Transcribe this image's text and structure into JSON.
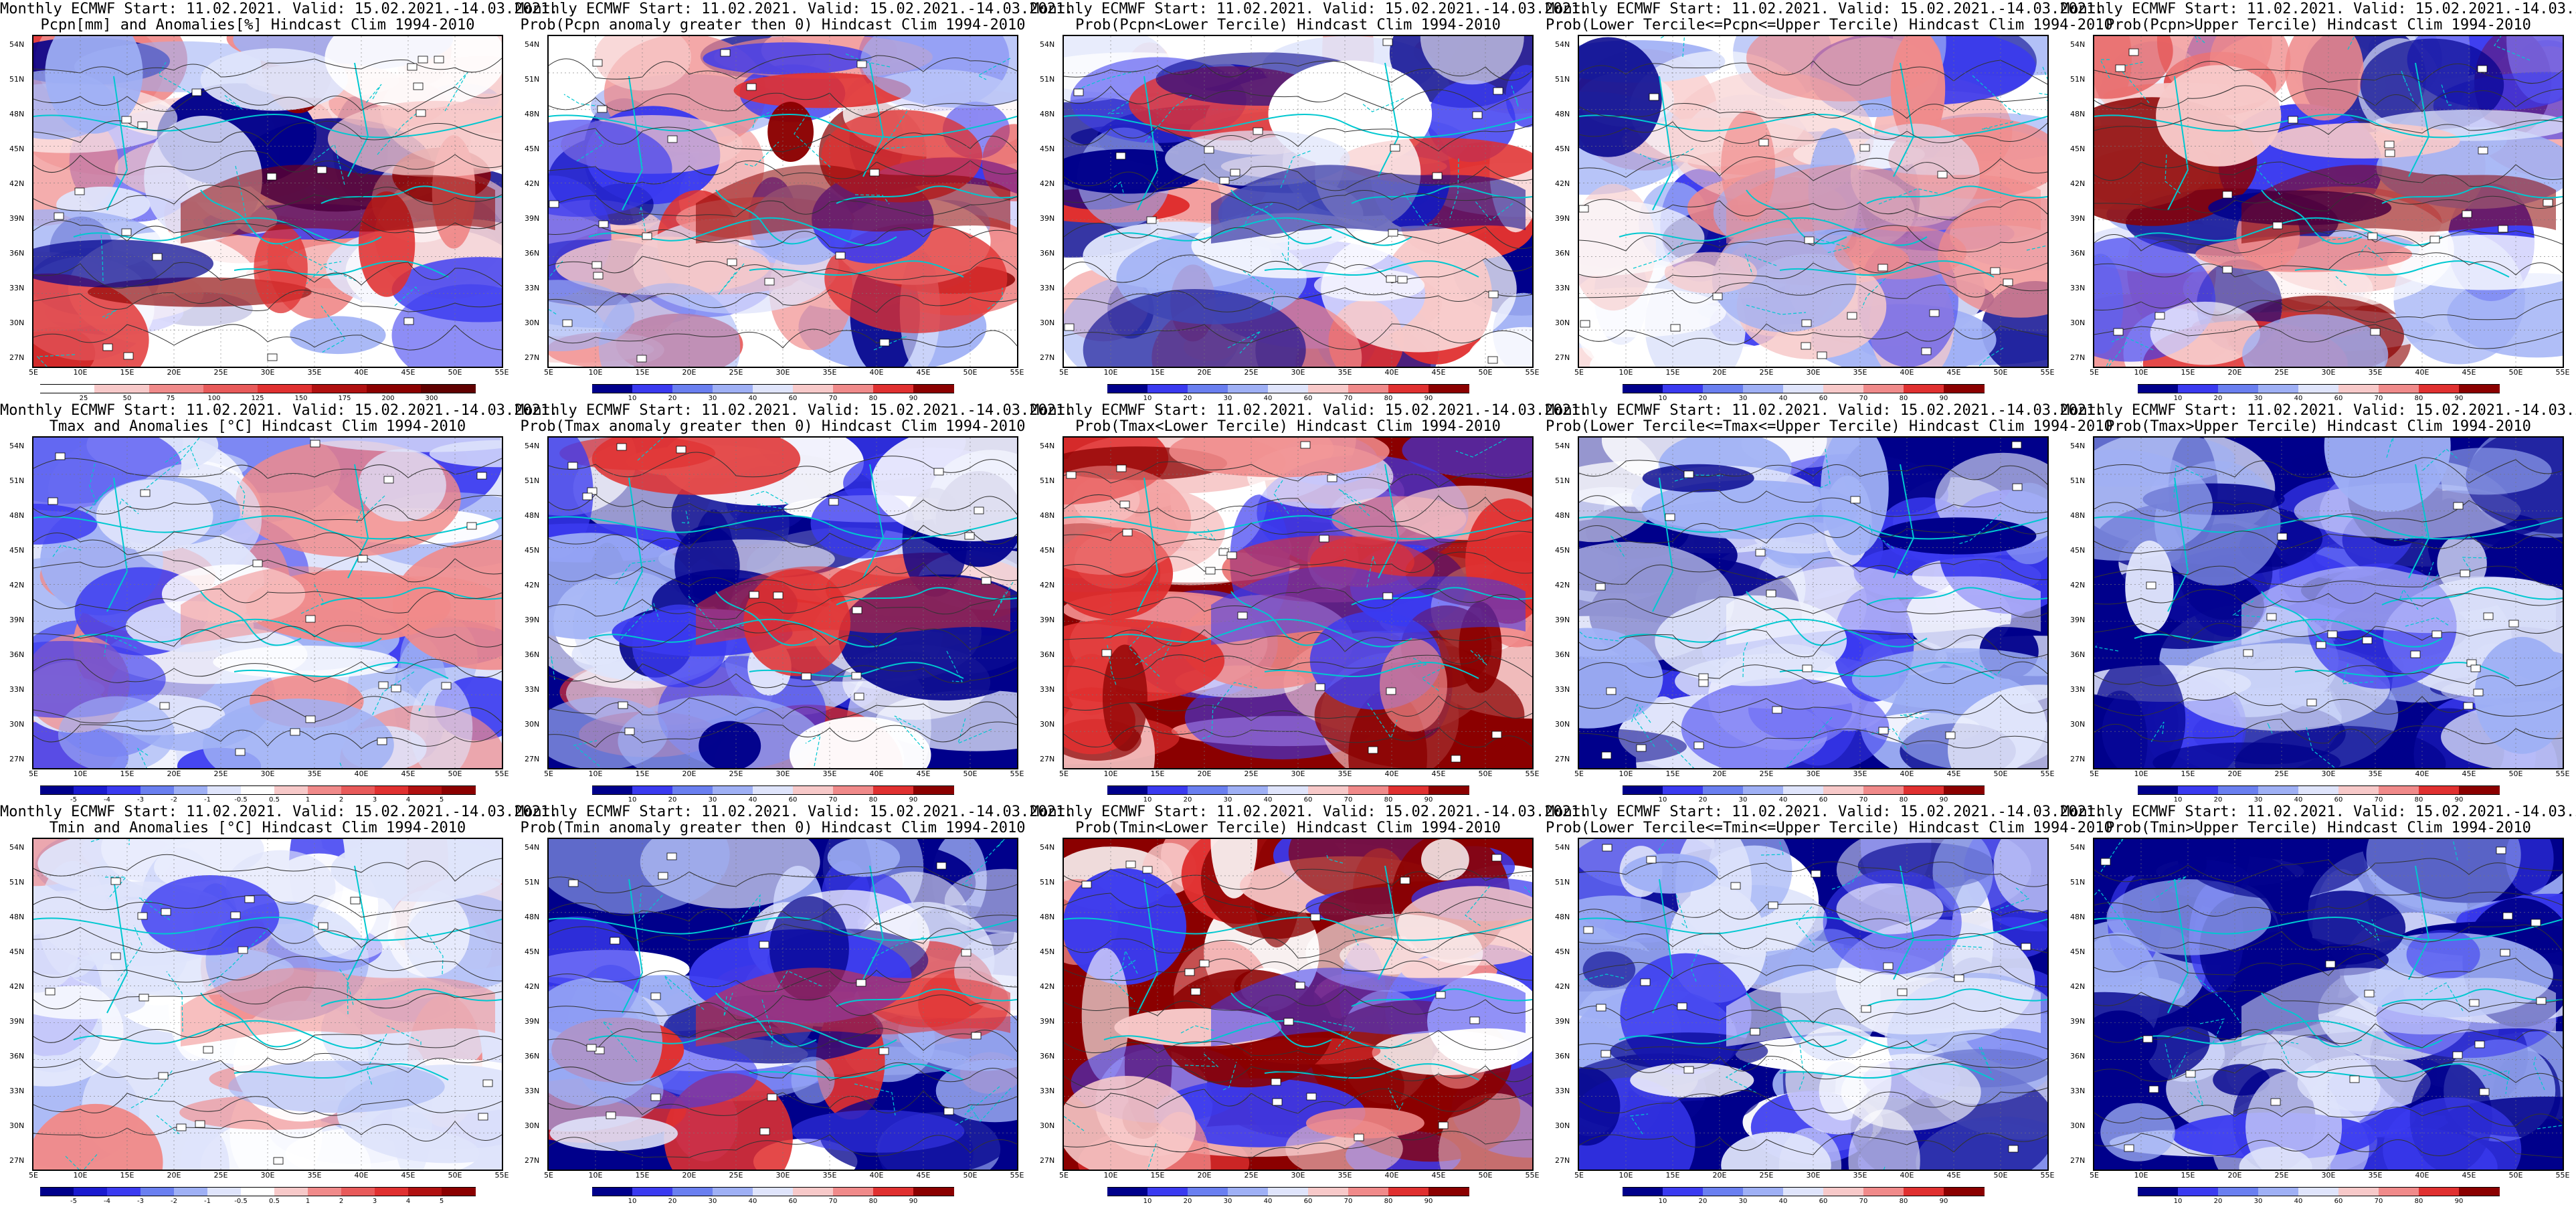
{
  "header": "Monthly ECMWF Start: 11.02.2021. Valid: 15.02.2021.-14.03.2021.",
  "lat_labels": [
    "54N",
    "51N",
    "48N",
    "45N",
    "42N",
    "39N",
    "36N",
    "33N",
    "30N",
    "27N"
  ],
  "lon_labels": [
    "5E",
    "10E",
    "15E",
    "20E",
    "25E",
    "30E",
    "35E",
    "40E",
    "45E",
    "50E",
    "55E"
  ],
  "colors": {
    "deep_blue": "#00008b",
    "mid_blue": "#3a3af0",
    "light_blue": "#9fb0f5",
    "pale_blue": "#dfe4fb",
    "white": "#ffffff",
    "pale_red": "#f7c9c9",
    "light_red": "#f08a8a",
    "mid_red": "#e03030",
    "deep_red": "#8b0000",
    "border_cyan": "#00c8d0",
    "contour": "#333333"
  },
  "anomaly_ticks_temp": [
    "-5",
    "-4",
    "-3",
    "-2",
    "-1",
    "-0.5",
    "0.5",
    "1",
    "2",
    "3",
    "4",
    "5"
  ],
  "anomaly_ticks_prec": [
    "25",
    "50",
    "75",
    "100",
    "125",
    "150",
    "175",
    "200",
    "300"
  ],
  "prob_ticks": [
    "10",
    "20",
    "30",
    "40",
    "60",
    "70",
    "80",
    "90"
  ],
  "panels": [
    {
      "id": "p-prec-anom",
      "title2": "Pcpn[mm] and Anomalies[%] Hindcast Clim 1994-2010",
      "scheme": "prec",
      "bar": "prec"
    },
    {
      "id": "p-prec-gt0",
      "title2": "Prob(Pcpn anomaly greater then 0) Hindcast Clim 1994-2010",
      "scheme": "prec",
      "bar": "prob"
    },
    {
      "id": "p-prec-low",
      "title2": "Prob(Pcpn<Lower Tercile) Hindcast Clim 1994-2010",
      "scheme": "precinv",
      "bar": "prob"
    },
    {
      "id": "p-prec-mid",
      "title2": "Prob(Lower Tercile<=Pcpn<=Upper Tercile) Hindcast Clim 1994-2010",
      "scheme": "mid",
      "bar": "prob"
    },
    {
      "id": "p-prec-up",
      "title2": "Prob(Pcpn>Upper Tercile) Hindcast Clim 1994-2010",
      "scheme": "prec",
      "bar": "prob"
    },
    {
      "id": "p-tmax-anom",
      "title2": "Tmax and Anomalies [°C] Hindcast Clim 1994-2010",
      "scheme": "coldmild",
      "bar": "temp"
    },
    {
      "id": "p-tmax-gt0",
      "title2": "Prob(Tmax anomaly greater then 0) Hindcast Clim 1994-2010",
      "scheme": "cold",
      "bar": "prob"
    },
    {
      "id": "p-tmax-low",
      "title2": "Prob(Tmax<Lower Tercile) Hindcast Clim 1994-2010",
      "scheme": "warm",
      "bar": "prob"
    },
    {
      "id": "p-tmax-mid",
      "title2": "Prob(Lower Tercile<=Tmax<=Upper Tercile) Hindcast Clim 1994-2010",
      "scheme": "coldmid",
      "bar": "prob"
    },
    {
      "id": "p-tmax-up",
      "title2": "Prob(Tmax>Upper Tercile) Hindcast Clim 1994-2010",
      "scheme": "coldest",
      "bar": "prob"
    },
    {
      "id": "p-tmin-anom",
      "title2": "Tmin and Anomalies [°C] Hindcast Clim 1994-2010",
      "scheme": "coldmild",
      "bar": "temp"
    },
    {
      "id": "p-tmin-gt0",
      "title2": "Prob(Tmin anomaly greater then 0) Hindcast Clim 1994-2010",
      "scheme": "cold",
      "bar": "prob"
    },
    {
      "id": "p-tmin-low",
      "title2": "Prob(Tmin<Lower Tercile) Hindcast Clim 1994-2010",
      "scheme": "warm",
      "bar": "prob"
    },
    {
      "id": "p-tmin-mid",
      "title2": "Prob(Lower Tercile<=Tmin<=Upper Tercile) Hindcast Clim 1994-2010",
      "scheme": "coldmid",
      "bar": "prob"
    },
    {
      "id": "p-tmin-up",
      "title2": "Prob(Tmin>Upper Tercile) Hindcast Clim 1994-2010",
      "scheme": "coldest",
      "bar": "prob"
    }
  ]
}
